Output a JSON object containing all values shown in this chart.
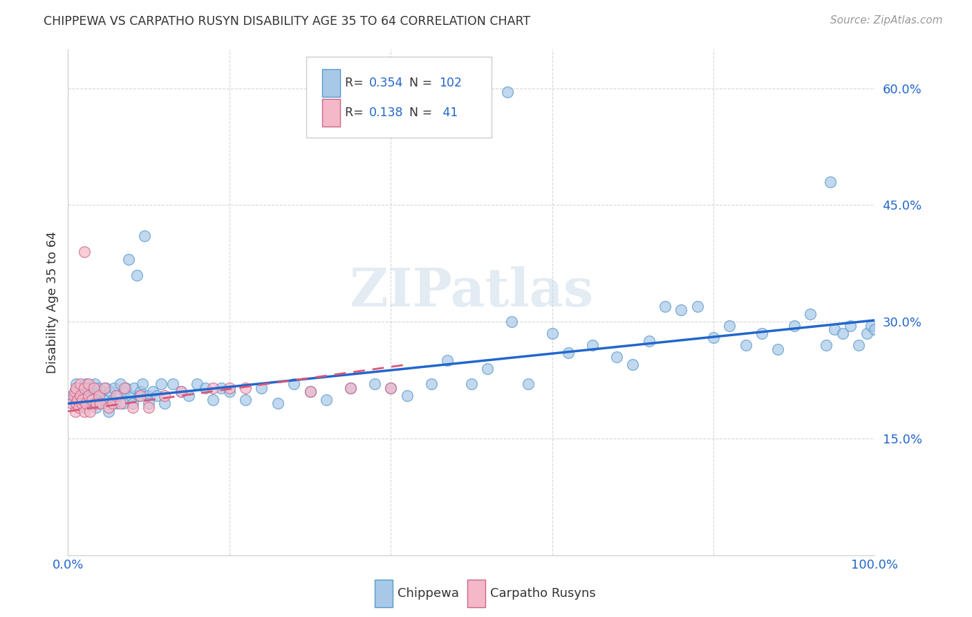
{
  "title": "CHIPPEWA VS CARPATHO RUSYN DISABILITY AGE 35 TO 64 CORRELATION CHART",
  "source": "Source: ZipAtlas.com",
  "ylabel": "Disability Age 35 to 64",
  "xlim": [
    0.0,
    1.0
  ],
  "ylim": [
    0.0,
    0.65
  ],
  "yticks": [
    0.0,
    0.15,
    0.3,
    0.45,
    0.6
  ],
  "ytick_labels": [
    "",
    "15.0%",
    "30.0%",
    "45.0%",
    "60.0%"
  ],
  "xticks": [
    0.0,
    0.2,
    0.4,
    0.6,
    0.8,
    1.0
  ],
  "xtick_labels": [
    "0.0%",
    "",
    "",
    "",
    "",
    "100.0%"
  ],
  "chippewa_color": "#a8c8e8",
  "chippewa_edge_color": "#5599cc",
  "carpatho_color": "#f4b8c8",
  "carpatho_edge_color": "#cc6688",
  "chippewa_line_color": "#2266cc",
  "carpatho_line_color": "#dd5577",
  "r_chippewa": 0.354,
  "n_chippewa": 102,
  "r_carpatho": 0.138,
  "n_carpatho": 41,
  "legend_label_chippewa": "Chippewa",
  "legend_label_carpatho": "Carpatho Rusyns",
  "watermark": "ZIPatlas",
  "chippewa_x": [
    0.005,
    0.008,
    0.01,
    0.01,
    0.012,
    0.015,
    0.015,
    0.017,
    0.018,
    0.02,
    0.02,
    0.022,
    0.025,
    0.025,
    0.027,
    0.028,
    0.03,
    0.03,
    0.032,
    0.033,
    0.035,
    0.037,
    0.038,
    0.04,
    0.042,
    0.045,
    0.047,
    0.05,
    0.052,
    0.055,
    0.057,
    0.06,
    0.062,
    0.065,
    0.068,
    0.07,
    0.072,
    0.075,
    0.078,
    0.08,
    0.082,
    0.085,
    0.088,
    0.09,
    0.092,
    0.095,
    0.098,
    0.1,
    0.105,
    0.11,
    0.115,
    0.12,
    0.13,
    0.14,
    0.15,
    0.16,
    0.17,
    0.18,
    0.19,
    0.2,
    0.22,
    0.24,
    0.26,
    0.28,
    0.3,
    0.32,
    0.35,
    0.38,
    0.4,
    0.42,
    0.45,
    0.47,
    0.5,
    0.52,
    0.55,
    0.57,
    0.6,
    0.62,
    0.65,
    0.68,
    0.7,
    0.72,
    0.74,
    0.76,
    0.78,
    0.8,
    0.82,
    0.84,
    0.86,
    0.88,
    0.9,
    0.92,
    0.94,
    0.95,
    0.96,
    0.97,
    0.98,
    0.99,
    0.995,
    1.0,
    0.545,
    0.945
  ],
  "chippewa_y": [
    0.205,
    0.195,
    0.21,
    0.22,
    0.2,
    0.195,
    0.215,
    0.2,
    0.205,
    0.19,
    0.21,
    0.22,
    0.2,
    0.215,
    0.205,
    0.195,
    0.2,
    0.215,
    0.195,
    0.22,
    0.19,
    0.2,
    0.215,
    0.195,
    0.21,
    0.2,
    0.215,
    0.185,
    0.21,
    0.2,
    0.215,
    0.195,
    0.205,
    0.22,
    0.195,
    0.21,
    0.215,
    0.38,
    0.205,
    0.195,
    0.215,
    0.36,
    0.205,
    0.21,
    0.22,
    0.41,
    0.205,
    0.195,
    0.21,
    0.205,
    0.22,
    0.195,
    0.22,
    0.21,
    0.205,
    0.22,
    0.215,
    0.2,
    0.215,
    0.21,
    0.2,
    0.215,
    0.195,
    0.22,
    0.21,
    0.2,
    0.215,
    0.22,
    0.215,
    0.205,
    0.22,
    0.25,
    0.22,
    0.24,
    0.3,
    0.22,
    0.285,
    0.26,
    0.27,
    0.255,
    0.245,
    0.275,
    0.32,
    0.315,
    0.32,
    0.28,
    0.295,
    0.27,
    0.285,
    0.265,
    0.295,
    0.31,
    0.27,
    0.29,
    0.285,
    0.295,
    0.27,
    0.285,
    0.295,
    0.29,
    0.595,
    0.48
  ],
  "carpatho_x": [
    0.005,
    0.007,
    0.008,
    0.009,
    0.01,
    0.01,
    0.012,
    0.013,
    0.015,
    0.015,
    0.017,
    0.018,
    0.02,
    0.02,
    0.022,
    0.025,
    0.025,
    0.027,
    0.03,
    0.032,
    0.035,
    0.038,
    0.04,
    0.045,
    0.05,
    0.055,
    0.06,
    0.065,
    0.07,
    0.08,
    0.09,
    0.1,
    0.12,
    0.14,
    0.18,
    0.2,
    0.22,
    0.3,
    0.35,
    0.4,
    0.02
  ],
  "carpatho_y": [
    0.195,
    0.205,
    0.21,
    0.185,
    0.195,
    0.215,
    0.2,
    0.19,
    0.205,
    0.22,
    0.195,
    0.2,
    0.185,
    0.215,
    0.195,
    0.205,
    0.22,
    0.185,
    0.2,
    0.215,
    0.195,
    0.205,
    0.195,
    0.215,
    0.19,
    0.195,
    0.205,
    0.195,
    0.215,
    0.19,
    0.205,
    0.19,
    0.205,
    0.21,
    0.215,
    0.215,
    0.215,
    0.21,
    0.215,
    0.215,
    0.39
  ],
  "chip_line_x0": 0.0,
  "chip_line_y0": 0.195,
  "chip_line_x1": 1.0,
  "chip_line_y1": 0.302,
  "carp_line_x0": 0.0,
  "carp_line_y0": 0.185,
  "carp_line_x1": 0.42,
  "carp_line_y1": 0.245
}
